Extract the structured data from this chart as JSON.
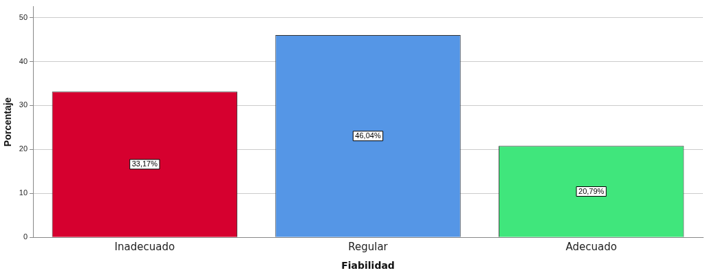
{
  "chart_data": {
    "type": "bar",
    "xlabel": "Fiabilidad",
    "ylabel": "Porcentaje",
    "categories": [
      "Inadecuado",
      "Regular",
      "Adecuado"
    ],
    "values": [
      33.17,
      46.04,
      20.79
    ],
    "colors": [
      "#d6002f",
      "#5596e6",
      "#40e67c"
    ],
    "value_labels": [
      "33,17%",
      "46,04%",
      "20,79%"
    ],
    "ylim": [
      0,
      52.5
    ],
    "yticks": [
      0,
      10,
      20,
      30,
      40,
      50
    ],
    "grid": "y",
    "legend": false
  }
}
